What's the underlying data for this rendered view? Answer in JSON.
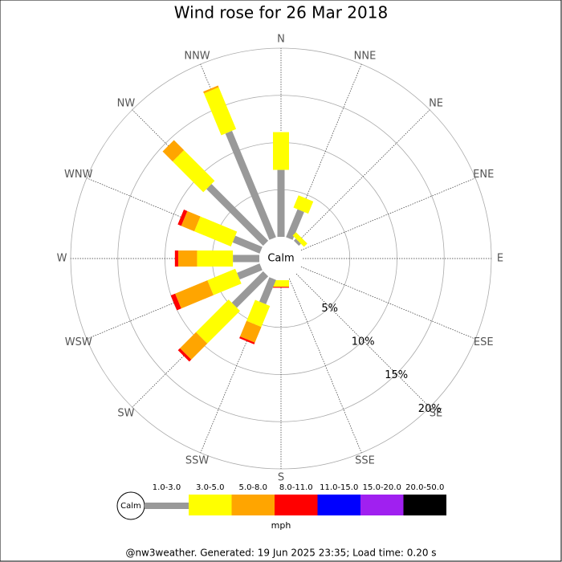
{
  "chart_data": {
    "type": "windrose",
    "title": "Wind rose for 26 Mar 2018",
    "categories": [
      "N",
      "NNE",
      "NE",
      "ENE",
      "E",
      "ESE",
      "SE",
      "SSE",
      "S",
      "SSW",
      "SW",
      "WSW",
      "W",
      "WNW",
      "NW",
      "NNW"
    ],
    "center_label": "Calm",
    "rlim": [
      0,
      20
    ],
    "rticks": [
      {
        "value": 5,
        "label": "5%"
      },
      {
        "value": 10,
        "label": "10%"
      },
      {
        "value": 15,
        "label": "15%"
      },
      {
        "value": 20,
        "label": "20%"
      }
    ],
    "series": [
      {
        "name": "1.0-3.0",
        "color": "#999999",
        "values": [
          7.1,
          3.2,
          0.3,
          0,
          0,
          0,
          0,
          0,
          0,
          2.8,
          4.7,
          2.6,
          2.8,
          3.1,
          8.5,
          12.2
        ]
      },
      {
        "name": "3.0-5.0",
        "color": "#ffff00",
        "values": [
          4.0,
          1.4,
          0.5,
          0,
          0,
          0,
          0,
          0,
          0.7,
          2.4,
          4.9,
          3.2,
          3.8,
          4.2,
          4.6,
          4.8
        ]
      },
      {
        "name": "5.0-8.0",
        "color": "#ffa500",
        "values": [
          0,
          0,
          0,
          0,
          0,
          0,
          0,
          0,
          0,
          1.8,
          2.4,
          3.7,
          2.0,
          1.5,
          1.5,
          0.2
        ]
      },
      {
        "name": "8.0-11.0",
        "color": "#ff0000",
        "values": [
          0,
          0,
          0,
          0,
          0,
          0,
          0,
          0,
          0.1,
          0.2,
          0.3,
          0.5,
          0.35,
          0.4,
          0,
          0
        ]
      },
      {
        "name": "11.0-15.0",
        "color": "#0000ff",
        "values": [
          0,
          0,
          0,
          0,
          0,
          0,
          0,
          0,
          0,
          0,
          0,
          0,
          0,
          0,
          0,
          0
        ]
      },
      {
        "name": "15.0-20.0",
        "color": "#a020f0",
        "values": [
          0,
          0,
          0,
          0,
          0,
          0,
          0,
          0,
          0,
          0,
          0,
          0,
          0,
          0,
          0,
          0
        ]
      },
      {
        "name": "20.0-50.0",
        "color": "#000000",
        "values": [
          0,
          0,
          0,
          0,
          0,
          0,
          0,
          0,
          0,
          0,
          0,
          0,
          0,
          0,
          0,
          0
        ]
      }
    ],
    "legend_unit": "mph",
    "footer": "@nw3weather. Generated: 19 Jun 2025 23:35; Load time: 0.20 s"
  }
}
